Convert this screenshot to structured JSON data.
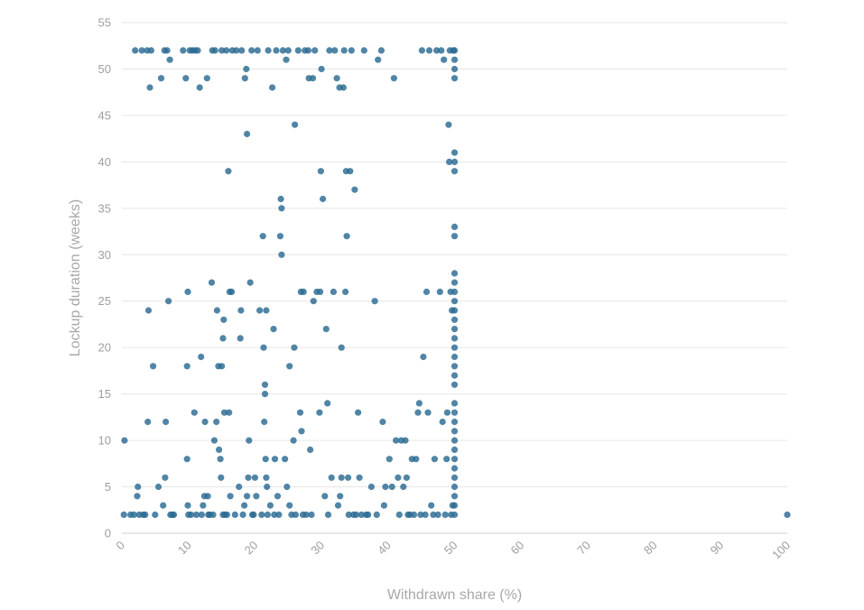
{
  "chart_data": {
    "type": "scatter",
    "title": "",
    "xlabel": "Withdrawn share (%)",
    "ylabel": "Lockup duration (weeks)",
    "xlim": [
      0,
      100
    ],
    "ylim": [
      0,
      55
    ],
    "x_ticks": [
      0,
      10,
      20,
      30,
      40,
      50,
      60,
      70,
      80,
      90,
      100
    ],
    "y_ticks": [
      0,
      5,
      10,
      15,
      20,
      25,
      30,
      35,
      40,
      45,
      50,
      55
    ],
    "grid": "horizontal",
    "legend": "none",
    "point_color": "#2b6a93",
    "series": [
      {
        "points": [
          [
            0.3,
            2
          ],
          [
            0.4,
            10
          ],
          [
            1.3,
            2
          ],
          [
            1.8,
            2
          ],
          [
            2.0,
            52
          ],
          [
            2.3,
            4
          ],
          [
            2.4,
            5
          ],
          [
            2.6,
            2
          ],
          [
            3.0,
            52
          ],
          [
            3.2,
            2
          ],
          [
            3.5,
            2
          ],
          [
            3.8,
            52
          ],
          [
            3.9,
            12
          ],
          [
            4.0,
            24
          ],
          [
            4.2,
            48
          ],
          [
            4.4,
            52
          ],
          [
            4.7,
            18
          ],
          [
            5.0,
            2
          ],
          [
            5.5,
            5
          ],
          [
            5.9,
            49
          ],
          [
            6.2,
            3
          ],
          [
            6.4,
            52
          ],
          [
            6.5,
            6
          ],
          [
            6.6,
            12
          ],
          [
            6.8,
            52
          ],
          [
            7.0,
            25
          ],
          [
            7.2,
            51
          ],
          [
            7.3,
            2
          ],
          [
            7.6,
            2
          ],
          [
            7.8,
            2
          ],
          [
            9.2,
            52
          ],
          [
            9.6,
            49
          ],
          [
            9.8,
            18
          ],
          [
            9.9,
            26
          ],
          [
            9.9,
            3
          ],
          [
            9.8,
            8
          ],
          [
            10.0,
            2
          ],
          [
            10.2,
            52
          ],
          [
            10.4,
            2
          ],
          [
            10.6,
            52
          ],
          [
            10.9,
            13
          ],
          [
            11.0,
            52
          ],
          [
            11.2,
            2
          ],
          [
            11.4,
            52
          ],
          [
            11.7,
            48
          ],
          [
            11.9,
            19
          ],
          [
            12.0,
            2
          ],
          [
            12.2,
            3
          ],
          [
            12.4,
            4
          ],
          [
            12.5,
            12
          ],
          [
            12.8,
            49
          ],
          [
            12.9,
            4
          ],
          [
            13.0,
            2
          ],
          [
            13.2,
            2
          ],
          [
            13.5,
            27
          ],
          [
            13.6,
            52
          ],
          [
            13.7,
            2
          ],
          [
            13.9,
            10
          ],
          [
            14.0,
            52
          ],
          [
            14.2,
            12
          ],
          [
            14.3,
            24
          ],
          [
            14.5,
            18
          ],
          [
            14.6,
            9
          ],
          [
            14.8,
            8
          ],
          [
            14.9,
            6
          ],
          [
            15.0,
            18
          ],
          [
            15.0,
            52
          ],
          [
            15.2,
            2
          ],
          [
            15.2,
            21
          ],
          [
            15.3,
            23
          ],
          [
            15.4,
            13
          ],
          [
            15.5,
            2
          ],
          [
            15.7,
            52
          ],
          [
            15.8,
            2
          ],
          [
            16.0,
            39
          ],
          [
            16.1,
            13
          ],
          [
            16.2,
            26
          ],
          [
            16.3,
            4
          ],
          [
            16.5,
            26
          ],
          [
            16.6,
            52
          ],
          [
            17.0,
            2
          ],
          [
            17.2,
            52
          ],
          [
            17.6,
            5
          ],
          [
            17.8,
            21
          ],
          [
            17.9,
            24
          ],
          [
            18.0,
            52
          ],
          [
            18.2,
            2
          ],
          [
            18.4,
            3
          ],
          [
            18.5,
            49
          ],
          [
            18.7,
            50
          ],
          [
            18.8,
            43
          ],
          [
            18.8,
            4
          ],
          [
            19.0,
            6
          ],
          [
            19.1,
            10
          ],
          [
            19.3,
            27
          ],
          [
            19.5,
            52
          ],
          [
            19.6,
            2
          ],
          [
            19.8,
            2
          ],
          [
            20.0,
            6
          ],
          [
            20.2,
            4
          ],
          [
            20.4,
            52
          ],
          [
            20.7,
            24
          ],
          [
            21.0,
            2
          ],
          [
            21.2,
            32
          ],
          [
            21.3,
            20
          ],
          [
            21.4,
            12
          ],
          [
            21.5,
            16
          ],
          [
            21.5,
            15
          ],
          [
            21.6,
            8
          ],
          [
            21.7,
            24
          ],
          [
            21.7,
            6
          ],
          [
            21.8,
            5
          ],
          [
            21.9,
            2
          ],
          [
            22.0,
            52
          ],
          [
            22.3,
            3
          ],
          [
            22.6,
            48
          ],
          [
            22.8,
            22
          ],
          [
            22.9,
            2
          ],
          [
            23.0,
            8
          ],
          [
            23.2,
            52
          ],
          [
            23.4,
            4
          ],
          [
            23.6,
            2
          ],
          [
            23.8,
            32
          ],
          [
            23.9,
            36
          ],
          [
            24.0,
            35
          ],
          [
            24.0,
            30
          ],
          [
            24.2,
            52
          ],
          [
            24.5,
            8
          ],
          [
            24.7,
            51
          ],
          [
            24.8,
            5
          ],
          [
            25.0,
            52
          ],
          [
            25.2,
            18
          ],
          [
            25.2,
            3
          ],
          [
            25.5,
            2
          ],
          [
            25.8,
            10
          ],
          [
            25.9,
            20
          ],
          [
            26.0,
            44
          ],
          [
            26.1,
            2
          ],
          [
            26.5,
            52
          ],
          [
            26.8,
            13
          ],
          [
            26.9,
            26
          ],
          [
            27.0,
            11
          ],
          [
            27.2,
            2
          ],
          [
            27.3,
            26
          ],
          [
            27.5,
            52
          ],
          [
            27.7,
            2
          ],
          [
            28.0,
            52
          ],
          [
            28.1,
            49
          ],
          [
            28.3,
            9
          ],
          [
            28.5,
            2
          ],
          [
            28.7,
            49
          ],
          [
            28.8,
            25
          ],
          [
            29.0,
            52
          ],
          [
            29.3,
            26
          ],
          [
            29.7,
            13
          ],
          [
            29.8,
            26
          ],
          [
            29.9,
            39
          ],
          [
            30.0,
            50
          ],
          [
            30.2,
            36
          ],
          [
            30.5,
            4
          ],
          [
            30.7,
            22
          ],
          [
            30.9,
            14
          ],
          [
            31.0,
            2
          ],
          [
            31.2,
            52
          ],
          [
            31.5,
            6
          ],
          [
            31.8,
            26
          ],
          [
            32.0,
            52
          ],
          [
            32.3,
            49
          ],
          [
            32.5,
            3
          ],
          [
            32.7,
            48
          ],
          [
            32.8,
            4
          ],
          [
            33.0,
            20
          ],
          [
            33.0,
            6
          ],
          [
            33.3,
            48
          ],
          [
            33.4,
            52
          ],
          [
            33.6,
            26
          ],
          [
            33.7,
            39
          ],
          [
            33.8,
            32
          ],
          [
            34.0,
            6
          ],
          [
            34.1,
            2
          ],
          [
            34.3,
            39
          ],
          [
            34.5,
            52
          ],
          [
            34.8,
            2
          ],
          [
            35.0,
            37
          ],
          [
            35.2,
            2
          ],
          [
            35.5,
            13
          ],
          [
            35.7,
            6
          ],
          [
            36.0,
            2
          ],
          [
            36.4,
            52
          ],
          [
            36.7,
            2
          ],
          [
            37.0,
            2
          ],
          [
            37.5,
            5
          ],
          [
            38.0,
            25
          ],
          [
            38.3,
            2
          ],
          [
            38.5,
            51
          ],
          [
            39.0,
            52
          ],
          [
            39.2,
            12
          ],
          [
            39.4,
            3
          ],
          [
            39.6,
            5
          ],
          [
            40.2,
            8
          ],
          [
            40.6,
            5
          ],
          [
            40.9,
            49
          ],
          [
            41.2,
            10
          ],
          [
            41.5,
            6
          ],
          [
            41.7,
            2
          ],
          [
            42.0,
            10
          ],
          [
            42.3,
            5
          ],
          [
            42.6,
            10
          ],
          [
            42.8,
            6
          ],
          [
            43.0,
            2
          ],
          [
            43.3,
            2
          ],
          [
            43.6,
            8
          ],
          [
            43.9,
            2
          ],
          [
            44.2,
            8
          ],
          [
            44.5,
            13
          ],
          [
            44.7,
            14
          ],
          [
            44.9,
            2
          ],
          [
            45.1,
            52
          ],
          [
            45.3,
            19
          ],
          [
            45.6,
            2
          ],
          [
            45.8,
            26
          ],
          [
            46.0,
            13
          ],
          [
            46.2,
            52
          ],
          [
            46.5,
            3
          ],
          [
            46.8,
            2
          ],
          [
            47.0,
            8
          ],
          [
            47.3,
            52
          ],
          [
            47.5,
            2
          ],
          [
            47.8,
            26
          ],
          [
            48.0,
            52
          ],
          [
            48.2,
            12
          ],
          [
            48.4,
            51
          ],
          [
            48.6,
            2
          ],
          [
            48.8,
            8
          ],
          [
            48.9,
            13
          ],
          [
            49.1,
            44
          ],
          [
            49.2,
            40
          ],
          [
            49.3,
            52
          ],
          [
            49.4,
            26
          ],
          [
            49.5,
            2
          ],
          [
            49.6,
            24
          ],
          [
            49.7,
            3
          ],
          [
            49.8,
            52
          ],
          [
            50,
            2
          ],
          [
            50,
            3
          ],
          [
            50,
            4
          ],
          [
            50,
            5
          ],
          [
            50,
            6
          ],
          [
            50,
            7
          ],
          [
            50,
            8
          ],
          [
            50,
            9
          ],
          [
            50,
            10
          ],
          [
            50,
            11
          ],
          [
            50,
            12
          ],
          [
            50,
            13
          ],
          [
            50,
            14
          ],
          [
            50,
            16
          ],
          [
            50,
            17
          ],
          [
            50,
            18
          ],
          [
            50,
            19
          ],
          [
            50,
            20
          ],
          [
            50,
            21
          ],
          [
            50,
            22
          ],
          [
            50,
            23
          ],
          [
            50,
            24
          ],
          [
            50,
            25
          ],
          [
            50,
            26
          ],
          [
            50,
            27
          ],
          [
            50,
            28
          ],
          [
            50,
            32
          ],
          [
            50,
            33
          ],
          [
            50,
            39
          ],
          [
            50,
            40
          ],
          [
            50,
            41
          ],
          [
            50,
            49
          ],
          [
            50,
            50
          ],
          [
            50,
            51
          ],
          [
            50,
            52
          ],
          [
            100,
            2
          ]
        ]
      }
    ]
  }
}
